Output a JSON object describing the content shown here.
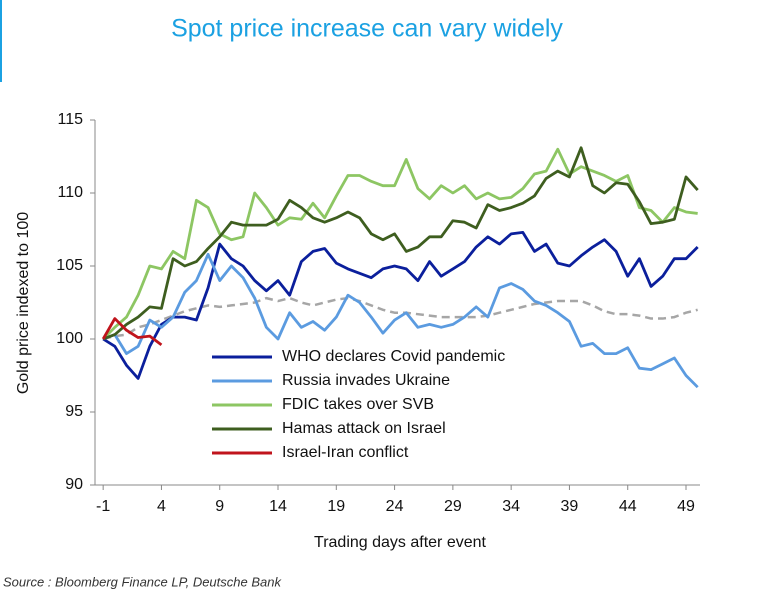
{
  "chart_data": {
    "type": "line",
    "title": "Spot price increase can vary widely",
    "xlabel": "Trading days after event",
    "ylabel": "Gold price indexed to 100",
    "source": "Source : Bloomberg Finance LP, Deutsche Bank",
    "xlim": [
      -1.7,
      50.2
    ],
    "xticks": [
      -1,
      4,
      9,
      14,
      19,
      24,
      29,
      34,
      39,
      44,
      49
    ],
    "ylim": [
      90,
      115
    ],
    "yticks": [
      90,
      95,
      100,
      105,
      110,
      115
    ],
    "grid": false,
    "legend": "lower center",
    "x": [
      -1,
      0,
      1,
      2,
      3,
      4,
      5,
      6,
      7,
      8,
      9,
      10,
      11,
      12,
      13,
      14,
      15,
      16,
      17,
      18,
      19,
      20,
      21,
      22,
      23,
      24,
      25,
      26,
      27,
      28,
      29,
      30,
      31,
      32,
      33,
      34,
      35,
      36,
      37,
      38,
      39,
      40,
      41,
      42,
      43,
      44,
      45,
      46,
      47,
      48,
      49,
      50
    ],
    "series": [
      {
        "color": "#a6a6a6",
        "dashed": true,
        "values": [
          100,
          100.2,
          100.3,
          100.8,
          101,
          101.3,
          101.6,
          101.9,
          102.1,
          102.3,
          102.2,
          102.3,
          102.4,
          102.5,
          102.8,
          102.6,
          102.8,
          102.5,
          102.3,
          102.5,
          102.7,
          102.8,
          102.6,
          102.3,
          102,
          101.8,
          101.8,
          101.7,
          101.6,
          101.5,
          101.5,
          101.5,
          101.5,
          101.6,
          101.8,
          102,
          102.2,
          102.4,
          102.5,
          102.6,
          102.6,
          102.6,
          102.3,
          101.9,
          101.7,
          101.7,
          101.6,
          101.4,
          101.4,
          101.5,
          101.8,
          102
        ]
      },
      {
        "name": "WHO declares Covid pandemic",
        "color": "#0b1f9c",
        "values": [
          100,
          99.5,
          98.2,
          97.3,
          99.5,
          101,
          101.5,
          101.5,
          101.3,
          103.5,
          106.5,
          105.5,
          105,
          104,
          103.3,
          104,
          103,
          105.3,
          106,
          106.2,
          105.2,
          104.8,
          104.5,
          104.2,
          104.8,
          105,
          104.8,
          104,
          105.3,
          104.3,
          104.8,
          105.3,
          106.3,
          107,
          106.5,
          107.2,
          107.3,
          106,
          106.5,
          105.2,
          105,
          105.7,
          106.3,
          106.8,
          106,
          104.3,
          105.5,
          103.6,
          104.3,
          105.5,
          105.5,
          106.3
        ]
      },
      {
        "name": "Russia invades Ukraine",
        "color": "#5b9be0",
        "values": [
          100,
          100.3,
          99,
          99.5,
          101.3,
          100.8,
          101.5,
          103.2,
          104,
          105.8,
          104,
          105,
          104.2,
          102.8,
          100.8,
          100,
          101.8,
          100.8,
          101.2,
          100.6,
          101.5,
          103,
          102.5,
          101.5,
          100.4,
          101.3,
          101.8,
          100.8,
          101,
          100.8,
          101,
          101.5,
          102.2,
          101.5,
          103.5,
          103.8,
          103.4,
          102.6,
          102.3,
          101.8,
          101.2,
          99.5,
          99.7,
          99,
          99,
          99.4,
          98,
          97.9,
          98.3,
          98.7,
          97.5,
          96.7
        ]
      },
      {
        "name": "FDIC takes over SVB",
        "color": "#8dc663",
        "values": [
          100,
          100.8,
          101.5,
          103,
          105,
          104.8,
          106,
          105.5,
          109.5,
          109,
          107.2,
          106.8,
          107,
          110,
          109,
          107.8,
          108.3,
          108.2,
          109.3,
          108.3,
          109.8,
          111.2,
          111.2,
          110.8,
          110.5,
          110.5,
          112.3,
          110.3,
          109.6,
          110.5,
          110,
          110.5,
          109.6,
          110,
          109.6,
          109.7,
          110.3,
          111.3,
          111.5,
          113,
          111.3,
          111.8,
          111.5,
          111.2,
          110.8,
          111.2,
          109,
          108.8,
          108,
          109,
          108.7,
          108.6
        ]
      },
      {
        "name": "Hamas attack on Israel",
        "color": "#3e5e1f",
        "values": [
          100,
          100.3,
          101,
          101.5,
          102.2,
          102.1,
          105.5,
          105,
          105.3,
          106.2,
          107,
          108,
          107.8,
          107.8,
          107.8,
          108.2,
          109.5,
          109,
          108.3,
          108,
          108.3,
          108.7,
          108.3,
          107.2,
          106.8,
          107.2,
          106,
          106.3,
          107,
          107,
          108.1,
          108,
          107.6,
          109.2,
          108.8,
          109,
          109.3,
          109.8,
          111,
          111.5,
          111.1,
          113.1,
          110.5,
          110,
          110.7,
          110.6,
          109.4,
          107.9,
          108,
          108.2,
          111.1,
          110.2
        ]
      },
      {
        "name": "Israel-Iran conflict",
        "color": "#c0141c",
        "values": [
          100,
          101.4,
          100.6,
          100.1,
          100.2,
          99.6,
          null,
          null,
          null,
          null,
          null,
          null,
          null,
          null,
          null,
          null,
          null,
          null,
          null,
          null,
          null,
          null,
          null,
          null,
          null,
          null,
          null,
          null,
          null,
          null,
          null,
          null,
          null,
          null,
          null,
          null,
          null,
          null,
          null,
          null,
          null,
          null,
          null,
          null,
          null,
          null,
          null,
          null,
          null,
          null,
          null,
          null
        ]
      }
    ]
  }
}
